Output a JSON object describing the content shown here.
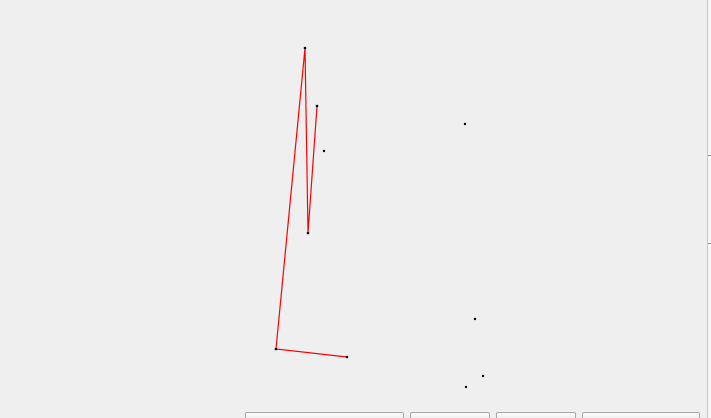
{
  "canvas": {
    "path_color": "#ff0000",
    "point_color": "#000000",
    "background": "#efefef",
    "path_point_count": 6,
    "free_point_count": 6
  },
  "buttons": [
    {
      "label": ""
    },
    {
      "label": ""
    },
    {
      "label": ""
    },
    {
      "label": ""
    }
  ]
}
